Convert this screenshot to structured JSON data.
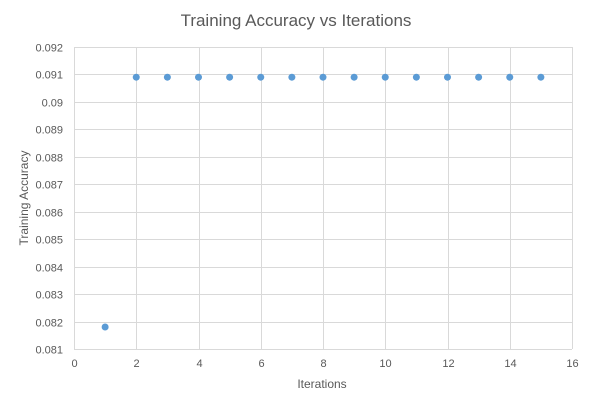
{
  "chart_data": {
    "type": "scatter",
    "title": "Training Accuracy vs Iterations",
    "xlabel": "Iterations",
    "ylabel": "Training Accuracy",
    "xlim": [
      0,
      16
    ],
    "ylim": [
      0.081,
      0.092
    ],
    "x_ticks": [
      "0",
      "2",
      "4",
      "6",
      "8",
      "10",
      "12",
      "14",
      "16"
    ],
    "y_ticks": [
      "0.081",
      "0.082",
      "0.083",
      "0.084",
      "0.085",
      "0.086",
      "0.087",
      "0.088",
      "0.089",
      "0.09",
      "0.091",
      "0.092"
    ],
    "grid": true,
    "legend": "none",
    "marker_color": "#5b9bd5",
    "series": [
      {
        "x": [
          1,
          2,
          3,
          4,
          5,
          6,
          7,
          8,
          9,
          10,
          11,
          12,
          13,
          14,
          15
        ],
        "y": [
          0.0818,
          0.0909,
          0.0909,
          0.0909,
          0.0909,
          0.0909,
          0.0909,
          0.0909,
          0.0909,
          0.0909,
          0.0909,
          0.0909,
          0.0909,
          0.0909,
          0.0909
        ]
      }
    ]
  }
}
